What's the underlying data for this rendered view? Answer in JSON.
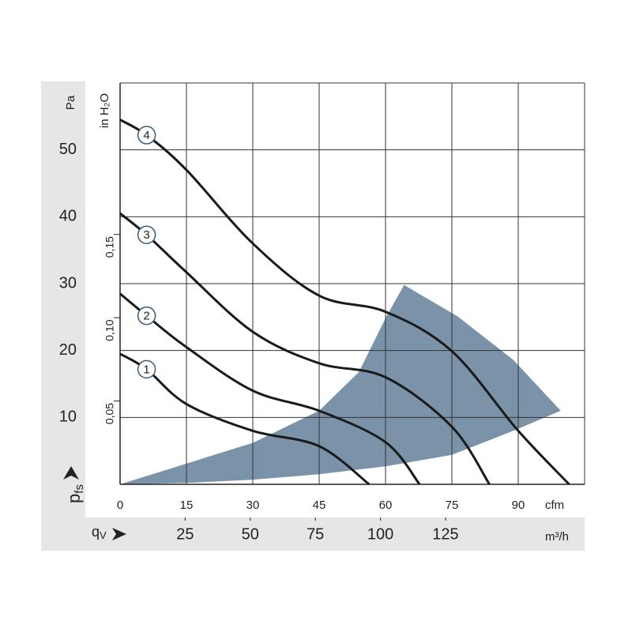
{
  "chart_data": {
    "type": "line",
    "y_unit": "Pa",
    "y_symbol": "p",
    "y_symbol_sub": "fs",
    "x_symbol": "q",
    "x_symbol_sub": "V",
    "x_unit": "cfm",
    "x2_unit": "m³/h",
    "y2_unit": "in H₂O",
    "xlim": [
      0,
      105
    ],
    "xticks": [
      0,
      15,
      30,
      45,
      60,
      75,
      90
    ],
    "x2lim": [
      0,
      178.4
    ],
    "x2ticks": [
      25,
      50,
      75,
      100,
      125
    ],
    "ylim": [
      0,
      60
    ],
    "yticks": [
      10,
      20,
      30,
      40,
      50
    ],
    "y2lim": [
      0,
      0.2409
    ],
    "y2ticks": [
      {
        "value": 0.05,
        "label": "0,05"
      },
      {
        "value": 0.1,
        "label": "0,10"
      },
      {
        "value": 0.15,
        "label": "0,15"
      }
    ],
    "grid": true,
    "series": [
      {
        "name": "1",
        "color": "#1a1a1a",
        "x": [
          0,
          6,
          15,
          30,
          45,
          56.3
        ],
        "values": [
          19.5,
          17.2,
          12,
          8,
          5.7,
          0
        ]
      },
      {
        "name": "2",
        "color": "#1a1a1a",
        "x": [
          0,
          6,
          15,
          30,
          45,
          60,
          67.7
        ],
        "values": [
          28.5,
          25.2,
          20.5,
          14,
          11,
          6.3,
          0
        ]
      },
      {
        "name": "3",
        "color": "#1a1a1a",
        "x": [
          0,
          6,
          15,
          30,
          45,
          60,
          75,
          83.5
        ],
        "values": [
          40.5,
          37.3,
          31.7,
          22.8,
          18.1,
          16,
          8.6,
          0
        ]
      },
      {
        "name": "4",
        "color": "#1a1a1a",
        "x": [
          0,
          6,
          15,
          30,
          45,
          60,
          75,
          90,
          101.5
        ],
        "values": [
          54.5,
          52.2,
          47,
          36,
          28.2,
          25.8,
          19.9,
          8,
          0
        ]
      }
    ],
    "operating_range": {
      "color": "#7b93a8",
      "x": [
        0,
        30,
        45,
        54,
        60.2,
        64.2,
        76.3,
        88.9,
        99.6,
        88.9,
        75,
        60.2,
        45,
        30,
        15
      ],
      "values": [
        0,
        6.2,
        11,
        16.8,
        25.1,
        29.8,
        25.1,
        18.6,
        11,
        8,
        4.4,
        2.7,
        1.5,
        0.7,
        0.2
      ]
    }
  }
}
